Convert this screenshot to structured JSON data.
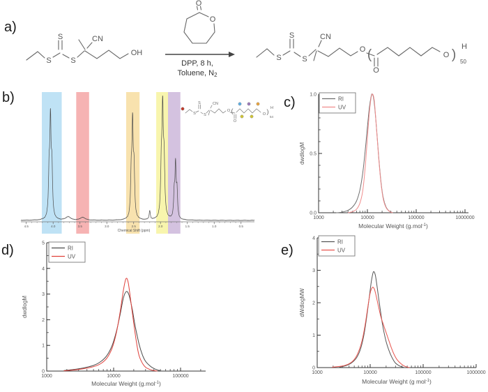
{
  "panels": {
    "a": {
      "label": "a)"
    },
    "b": {
      "label": "b)"
    },
    "c": {
      "label": "c)"
    },
    "d": {
      "label": "d)"
    },
    "e": {
      "label": "e)"
    }
  },
  "scheme": {
    "reactant": {
      "s_left": "S",
      "s_top": "S",
      "s_right": "S",
      "cn": "CN",
      "oh": "OH"
    },
    "monomer": {
      "ring_o": "O",
      "carbonyl_o": "O"
    },
    "conditions": {
      "line1": "DPP, 8 h,",
      "line2_main": "Toluene, N",
      "line2_sub": "2"
    },
    "product": {
      "s_left": "S",
      "s_top": "S",
      "s_right": "S",
      "cn": "CN",
      "ester_o": "O",
      "carbonyl_o": "O",
      "end_o": "O",
      "open_paren": "(",
      "close_paren": ")",
      "repeat_sub": "50",
      "end_h": "H"
    }
  },
  "nmr": {
    "axis_label": "Chemical Shift (ppm)",
    "range": [
      4.6,
      0.25
    ],
    "ticks": [
      "4.5",
      "4.0",
      "3.5",
      "3.0",
      "2.5",
      "2.0",
      "1.5",
      "1.0",
      "0.5"
    ],
    "bands": [
      {
        "name": "blue-band",
        "color": "#bfe2f5",
        "from": 4.21,
        "to": 3.84
      },
      {
        "name": "red-band",
        "color": "#f6b3b3",
        "from": 3.57,
        "to": 3.33
      },
      {
        "name": "orange-band",
        "color": "#f8e2ae",
        "from": 2.64,
        "to": 2.39
      },
      {
        "name": "yellow-band",
        "color": "#f8f5ad",
        "from": 2.08,
        "to": 1.86
      },
      {
        "name": "purple-band",
        "color": "#d4c2e0",
        "from": 1.86,
        "to": 1.63
      }
    ],
    "peaks": [
      {
        "ppm": 4.05,
        "h": 0.92,
        "w": 0.014,
        "split": true
      },
      {
        "ppm": 3.72,
        "h": 0.035,
        "w": 0.05,
        "split": false
      },
      {
        "ppm": 3.45,
        "h": 0.03,
        "w": 0.05,
        "split": false
      },
      {
        "ppm": 2.52,
        "h": 0.88,
        "w": 0.014,
        "split": true
      },
      {
        "ppm": 2.2,
        "h": 0.09,
        "w": 0.012,
        "split": false
      },
      {
        "ppm": 1.96,
        "h": 1.0,
        "w": 0.015,
        "split": true
      },
      {
        "ppm": 1.72,
        "h": 0.51,
        "w": 0.013,
        "split": true
      }
    ],
    "inset": {
      "s1": "S",
      "s2": "S",
      "s3": "S",
      "cn": "CN",
      "o1": "O",
      "o2": "O",
      "o3": "O",
      "h": "H",
      "open_paren": "(",
      "close_paren": ")",
      "repeat_sub": "54",
      "dot_colors": {
        "red": "#c0392b",
        "blue": "#5dade2",
        "purple": "#9b79b8",
        "orange": "#e8a33d",
        "yellow": "#cfc437"
      }
    }
  },
  "chart_data": [
    {
      "id": "c",
      "type": "line",
      "xscale": "log",
      "xlabel": {
        "pre": "Molecular Weight (g.mol",
        "sup": "-1",
        "post": ")"
      },
      "ylabel": "dwdlogM",
      "xlim": [
        1000,
        1000000
      ],
      "ylim": [
        0,
        1
      ],
      "xticks": [
        {
          "v": 1000,
          "label": "1000"
        },
        {
          "v": 10000,
          "label": "10000"
        },
        {
          "v": 100000,
          "label": "100000"
        },
        {
          "v": 1000000,
          "label": "1000000"
        }
      ],
      "yticks": {
        "values": [
          0,
          0.5,
          1
        ],
        "labels": [
          "0.0",
          "0.5",
          "1.0"
        ],
        "minor": 0.1
      },
      "legend": [
        "RI",
        "UV"
      ],
      "series": [
        {
          "name": "RI",
          "color": "#6e6e6e",
          "points": [
            [
              2300,
              0
            ],
            [
              3000,
              0.005
            ],
            [
              4000,
              0.02
            ],
            [
              5000,
              0.05
            ],
            [
              6000,
              0.1
            ],
            [
              7000,
              0.19
            ],
            [
              8000,
              0.33
            ],
            [
              9000,
              0.52
            ],
            [
              10000,
              0.72
            ],
            [
              11000,
              0.89
            ],
            [
              12000,
              0.985
            ],
            [
              12600,
              1.0
            ],
            [
              13500,
              0.96
            ],
            [
              15000,
              0.77
            ],
            [
              17000,
              0.48
            ],
            [
              19000,
              0.26
            ],
            [
              21000,
              0.13
            ],
            [
              24000,
              0.05
            ],
            [
              27000,
              0.02
            ],
            [
              30000,
              0.008
            ],
            [
              33000,
              0
            ]
          ]
        },
        {
          "name": "UV",
          "color": "#f08c8c",
          "points": [
            [
              4000,
              0
            ],
            [
              5000,
              0.01
            ],
            [
              6000,
              0.03
            ],
            [
              7000,
              0.08
            ],
            [
              8000,
              0.18
            ],
            [
              9000,
              0.38
            ],
            [
              10000,
              0.63
            ],
            [
              11000,
              0.85
            ],
            [
              12000,
              0.975
            ],
            [
              12800,
              1.0
            ],
            [
              13800,
              0.95
            ],
            [
              15000,
              0.77
            ],
            [
              17000,
              0.47
            ],
            [
              19000,
              0.25
            ],
            [
              21000,
              0.12
            ],
            [
              24000,
              0.045
            ],
            [
              27000,
              0.018
            ],
            [
              30000,
              0.006
            ],
            [
              33000,
              0
            ]
          ]
        }
      ]
    },
    {
      "id": "d",
      "type": "line",
      "xscale": "log",
      "xlabel": {
        "pre": "Molecular Weight (g.mol",
        "sup": "-1",
        "post": ")"
      },
      "ylabel": "dwdlogM",
      "xlim": [
        1000,
        250000
      ],
      "ylim": [
        0,
        5
      ],
      "xticks": [
        {
          "v": 1000,
          "label": "1000"
        },
        {
          "v": 10000,
          "label": "10000"
        },
        {
          "v": 100000,
          "label": "100000"
        }
      ],
      "yticks": {
        "values": [
          0,
          1,
          2,
          3,
          4,
          5
        ],
        "labels": [
          "0",
          "1",
          "2",
          "3",
          "4",
          "5"
        ],
        "minor": 0.5
      },
      "legend": [
        "RI",
        "UV"
      ],
      "series": [
        {
          "name": "RI",
          "color": "#4a4a4a",
          "points": [
            [
              1800,
              0.02
            ],
            [
              2500,
              0.06
            ],
            [
              3500,
              0.12
            ],
            [
              5000,
              0.22
            ],
            [
              6500,
              0.38
            ],
            [
              8000,
              0.62
            ],
            [
              9500,
              1.0
            ],
            [
              11000,
              1.55
            ],
            [
              12500,
              2.2
            ],
            [
              14000,
              2.85
            ],
            [
              15500,
              3.1
            ],
            [
              17000,
              2.95
            ],
            [
              19000,
              2.4
            ],
            [
              21000,
              1.75
            ],
            [
              24000,
              1.05
            ],
            [
              27000,
              0.62
            ],
            [
              30000,
              0.38
            ],
            [
              35000,
              0.2
            ],
            [
              40000,
              0.1
            ],
            [
              47000,
              0.03
            ],
            [
              52000,
              0
            ]
          ]
        },
        {
          "name": "UV",
          "color": "#e0403a",
          "points": [
            [
              1800,
              0.01
            ],
            [
              2500,
              0.04
            ],
            [
              3500,
              0.09
            ],
            [
              5000,
              0.17
            ],
            [
              6500,
              0.3
            ],
            [
              8000,
              0.52
            ],
            [
              9500,
              0.9
            ],
            [
              11000,
              1.5
            ],
            [
              12500,
              2.3
            ],
            [
              14000,
              3.15
            ],
            [
              15300,
              3.6
            ],
            [
              16500,
              3.45
            ],
            [
              18000,
              2.75
            ],
            [
              20000,
              1.85
            ],
            [
              22000,
              1.1
            ],
            [
              24000,
              0.6
            ],
            [
              27000,
              0.3
            ],
            [
              30000,
              0.15
            ],
            [
              35000,
              0.06
            ],
            [
              40000,
              0.02
            ],
            [
              45000,
              0
            ]
          ]
        }
      ]
    },
    {
      "id": "e",
      "type": "line",
      "xscale": "log",
      "xlabel": {
        "pre": "Molecular Weight (g mol",
        "sup": "-1",
        "post": ")"
      },
      "ylabel": "dWdlogMW",
      "xlim": [
        1000,
        1000000
      ],
      "ylim": [
        0,
        4
      ],
      "xticks": [
        {
          "v": 1000,
          "label": "1000"
        },
        {
          "v": 10000,
          "label": "10000"
        },
        {
          "v": 100000,
          "label": "100000"
        },
        {
          "v": 1000000,
          "label": "1000000"
        }
      ],
      "yticks": {
        "values": [
          0,
          1,
          2,
          3,
          4
        ],
        "labels": [
          "0",
          "1",
          "2",
          "3",
          "4"
        ],
        "minor": 0.5
      },
      "legend": [
        "RI",
        "UV"
      ],
      "series": [
        {
          "name": "RI",
          "color": "#555555",
          "points": [
            [
              2600,
              0.01
            ],
            [
              3500,
              0.06
            ],
            [
              4500,
              0.15
            ],
            [
              5500,
              0.3
            ],
            [
              6500,
              0.55
            ],
            [
              7500,
              0.95
            ],
            [
              8500,
              1.5
            ],
            [
              9500,
              2.1
            ],
            [
              10500,
              2.65
            ],
            [
              11500,
              2.95
            ],
            [
              12500,
              2.85
            ],
            [
              13500,
              2.5
            ],
            [
              15000,
              1.95
            ],
            [
              17000,
              1.35
            ],
            [
              19000,
              0.95
            ],
            [
              21000,
              0.68
            ],
            [
              24000,
              0.42
            ],
            [
              27000,
              0.25
            ],
            [
              30000,
              0.14
            ],
            [
              35000,
              0.06
            ],
            [
              40000,
              0.02
            ],
            [
              45000,
              0
            ]
          ]
        },
        {
          "name": "UV",
          "color": "#e8544e",
          "points": [
            [
              1900,
              0.01
            ],
            [
              3000,
              0.05
            ],
            [
              4000,
              0.12
            ],
            [
              5000,
              0.25
            ],
            [
              6000,
              0.48
            ],
            [
              7000,
              0.82
            ],
            [
              8000,
              1.3
            ],
            [
              9000,
              1.85
            ],
            [
              10000,
              2.3
            ],
            [
              11000,
              2.47
            ],
            [
              12000,
              2.42
            ],
            [
              13000,
              2.2
            ],
            [
              14500,
              1.85
            ],
            [
              16000,
              1.55
            ],
            [
              18000,
              1.3
            ],
            [
              20000,
              1.08
            ],
            [
              22000,
              0.88
            ],
            [
              25000,
              0.62
            ],
            [
              28000,
              0.42
            ],
            [
              32000,
              0.25
            ],
            [
              38000,
              0.12
            ],
            [
              45000,
              0.04
            ],
            [
              55000,
              0
            ]
          ]
        }
      ]
    }
  ]
}
